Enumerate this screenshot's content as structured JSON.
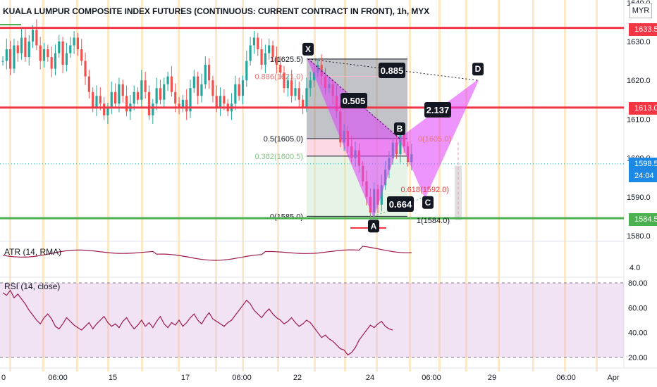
{
  "title": "KUALA LUMPUR COMPOSITE INDEX FUTURES (CONTINUOUS: CURRENT CONTRACT IN FRONT), 1h, MYX",
  "currency": "MYR",
  "colors": {
    "up": "#26a69a",
    "down": "#ef5350",
    "red_line": "#f23645",
    "green_line": "#4caf50",
    "pattern": "#e040fb",
    "rsi_line": "#9c1a50",
    "atr_line": "#9c1a50",
    "session": "#ffe0b2"
  },
  "price_tags": [
    {
      "value": "1633.5",
      "color": "#f23645"
    },
    {
      "value": "1613.0",
      "color": "#f23645"
    },
    {
      "value": "1598.5",
      "sub": "24:04",
      "color": "#1e88e5"
    },
    {
      "value": "1584.5",
      "color": "#4caf50"
    }
  ],
  "chart_data": {
    "type": "candlestick",
    "y_axis_ticks": [
      "1640.0",
      "1630.0",
      "1620.0",
      "1610.0",
      "1600.0",
      "1590.0",
      "1580.0"
    ],
    "ylim": [
      1578,
      1642
    ],
    "x_axis_ticks": [
      "0",
      "06:00",
      "15",
      "06:00",
      "17",
      "06:00",
      "22",
      "06:00",
      "24",
      "06:00",
      "29",
      "06:00",
      "Apr"
    ],
    "horizontal_levels": [
      {
        "price": 1633.5,
        "color": "red"
      },
      {
        "price": 1613.0,
        "color": "red"
      },
      {
        "price": 1584.5,
        "color": "green"
      }
    ],
    "current_price": 1598.5,
    "fib_levels": [
      {
        "label": "1(1625.5)",
        "price": 1625.5
      },
      {
        "label": "0.886(1621.0)",
        "price": 1621.0
      },
      {
        "label": "0.5(1605.0)",
        "price": 1605.0
      },
      {
        "label": "0.382(1600.5)",
        "price": 1600.5
      },
      {
        "label": "0(1585.0)",
        "price": 1585.0
      }
    ],
    "harmonic_pattern": {
      "points": [
        {
          "name": "X",
          "price": 1625.5
        },
        {
          "name": "A",
          "price": 1585.0
        },
        {
          "name": "B",
          "price": 1605.0
        },
        {
          "name": "C",
          "price": 1590.0
        },
        {
          "name": "D",
          "price": 1620.0
        }
      ],
      "ratios": [
        "0.505",
        "0.885",
        "2.137",
        "0.664"
      ],
      "projection_labels": [
        "0(1605.0)",
        "0.618(1592.0)",
        "1(1584.0)"
      ]
    },
    "atr": {
      "label": "ATR (14, RMA)",
      "tick": "4.0"
    },
    "rsi": {
      "label": "RSI (14, close)",
      "ticks": [
        "80.00",
        "60.00",
        "40.00",
        "20.00"
      ],
      "upper": 80,
      "lower": 20
    }
  }
}
